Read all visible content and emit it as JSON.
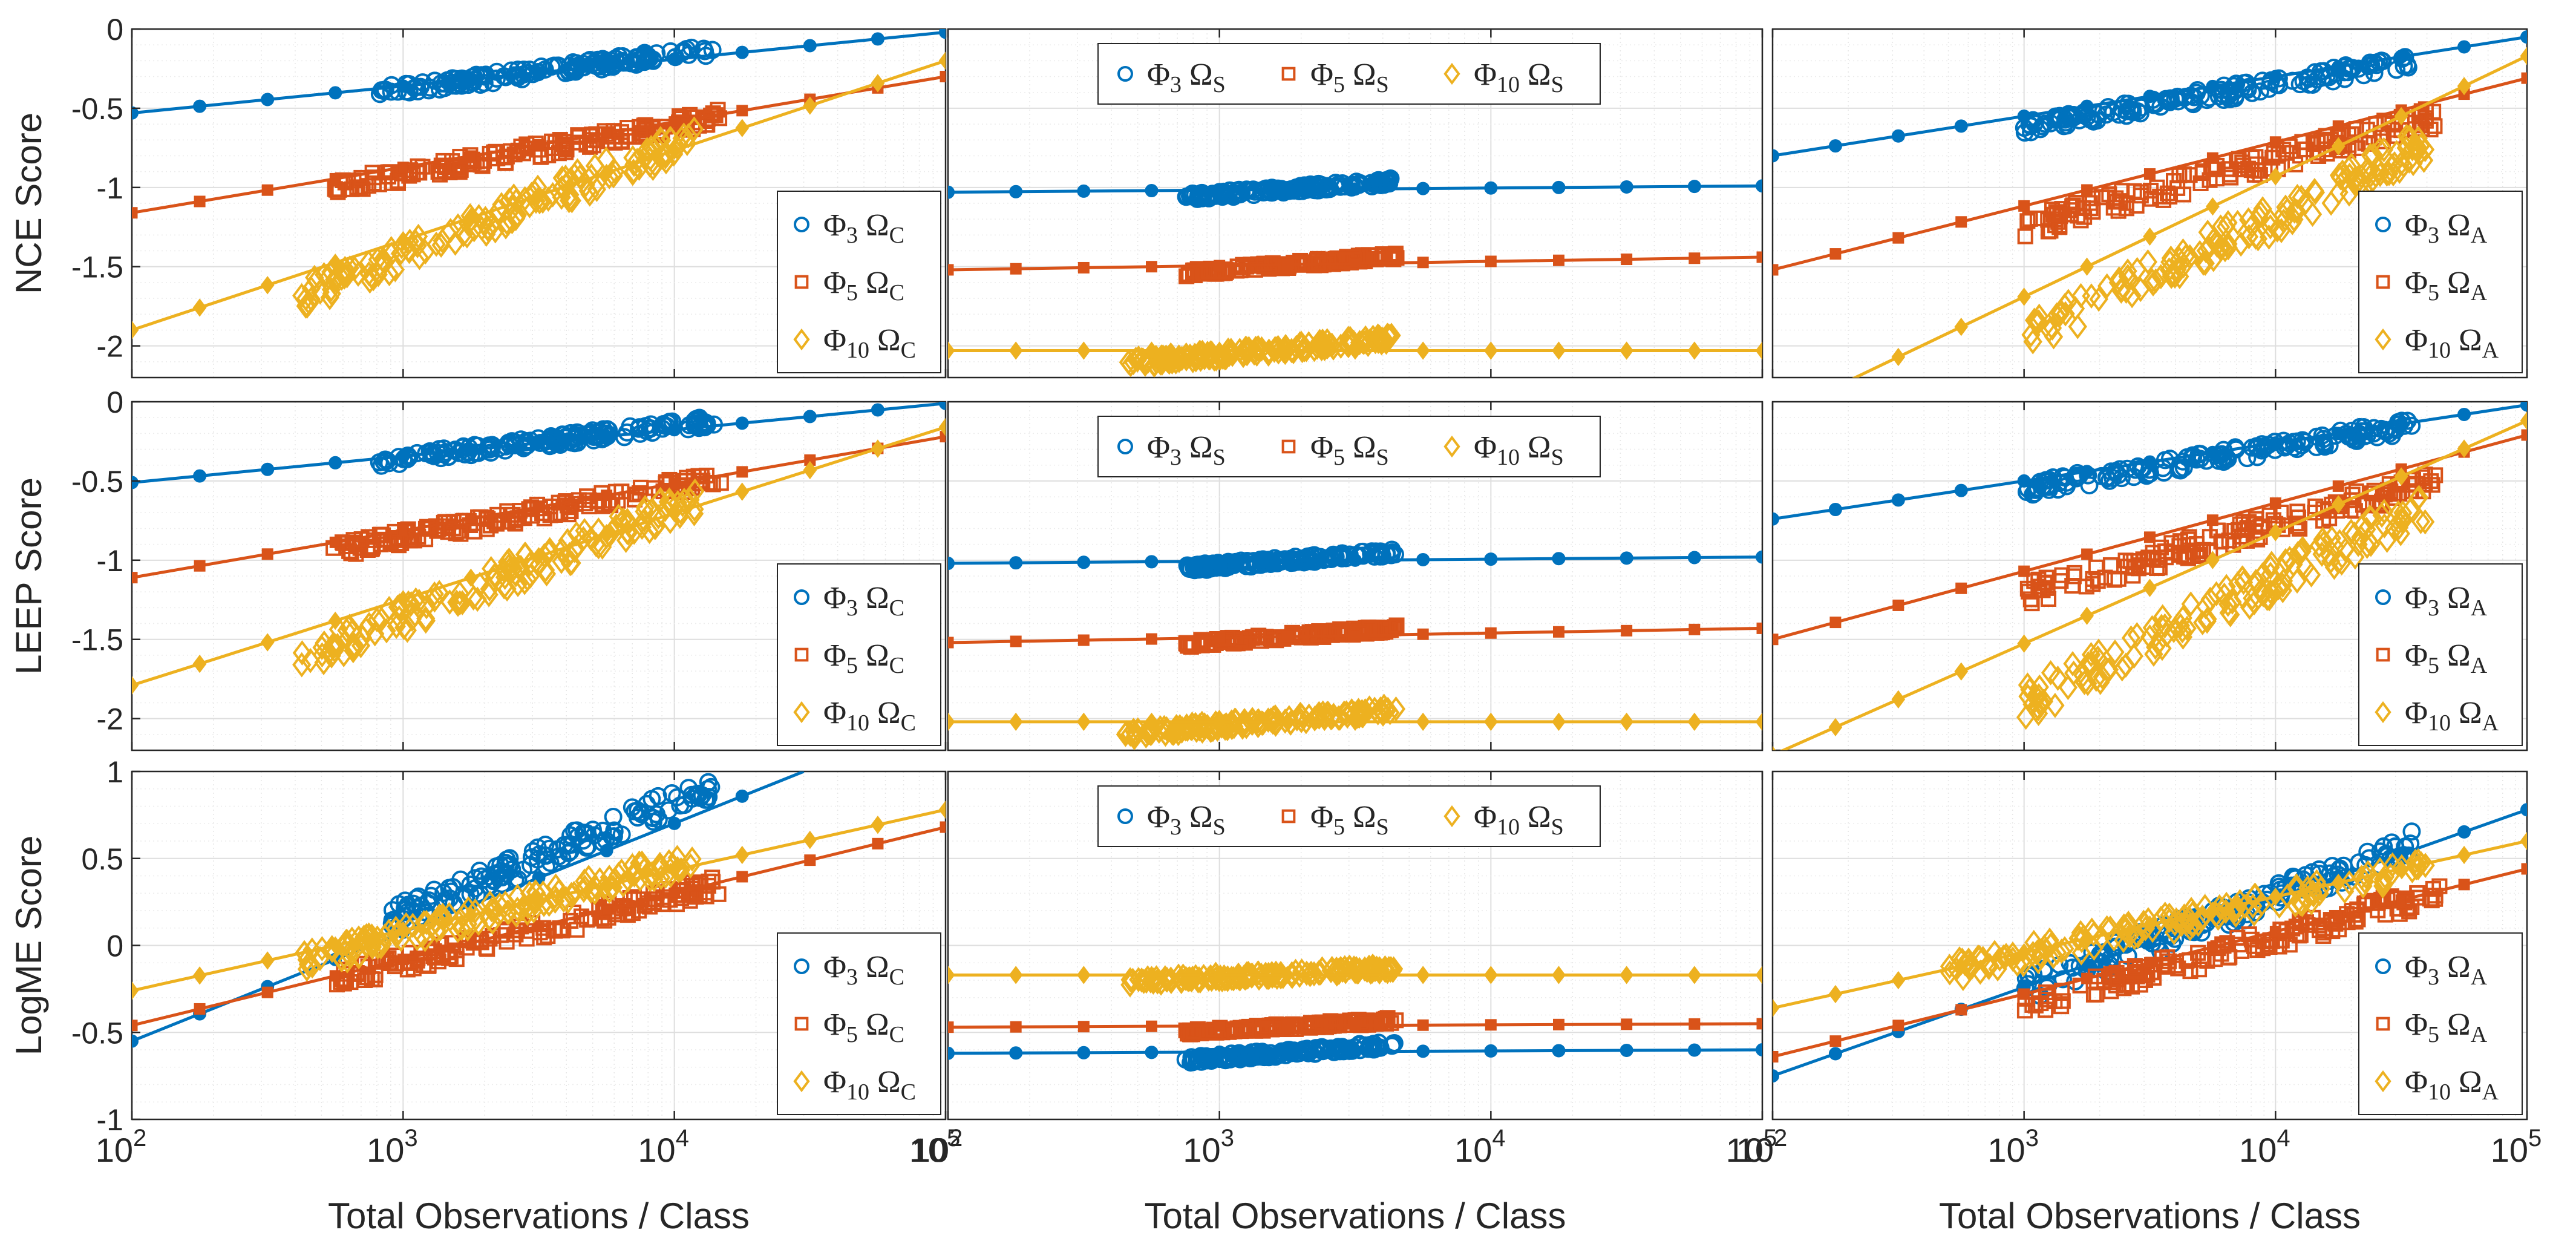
{
  "figure": {
    "xlabel": "Total Observations / Class",
    "xscale": "log",
    "xlim": [
      100,
      100000
    ],
    "x_tick_labels": [
      {
        "base": "10",
        "exp": "2"
      },
      {
        "base": "10",
        "exp": "3"
      },
      {
        "base": "10",
        "exp": "4"
      },
      {
        "base": "10",
        "exp": "5"
      }
    ],
    "grid": true,
    "minor_grid": true,
    "colors": {
      "phi3": "#0072BD",
      "phi5": "#D95319",
      "phi10": "#EDB120"
    }
  },
  "chart_data": [
    {
      "type": "scatter",
      "row": 0,
      "col": 0,
      "ylabel": "NCE Score",
      "ylim": [
        -2.2,
        0
      ],
      "yticks": [
        "0",
        "-0.5",
        "-1",
        "-1.5",
        "-2"
      ],
      "legend_position": "bottom-right",
      "legend_layout": "vertical",
      "series": [
        {
          "name": "Φ3 ΩC",
          "phi": "3",
          "omega": "C",
          "color": "#0072BD",
          "marker": "circle",
          "fit_line": [
            [
              100,
              -0.53
            ],
            [
              100000,
              -0.02
            ]
          ],
          "scatter_x_range": [
            800,
            14000
          ],
          "scatter_y_range": [
            -0.4,
            -0.13
          ]
        },
        {
          "name": "Φ5 ΩC",
          "phi": "5",
          "omega": "C",
          "color": "#D95319",
          "marker": "square",
          "fit_line": [
            [
              100,
              -1.16
            ],
            [
              100000,
              -0.3
            ]
          ],
          "scatter_x_range": [
            550,
            15000
          ],
          "scatter_y_range": [
            -1.0,
            -0.55
          ]
        },
        {
          "name": "Φ10 ΩC",
          "phi": "10",
          "omega": "C",
          "color": "#EDB120",
          "marker": "diamond",
          "fit_line": [
            [
              100,
              -1.9
            ],
            [
              100000,
              -0.2
            ]
          ],
          "scatter_x_range": [
            420,
            12000
          ],
          "scatter_y_range": [
            -1.68,
            -0.68
          ]
        }
      ]
    },
    {
      "type": "scatter",
      "row": 0,
      "col": 1,
      "ylabel": "",
      "ylim": [
        -2.2,
        0
      ],
      "yticks": [],
      "legend_position": "top-center",
      "legend_layout": "horizontal",
      "series": [
        {
          "name": "Φ3 ΩS",
          "phi": "3",
          "omega": "S",
          "color": "#0072BD",
          "marker": "circle",
          "fit_line": [
            [
              100,
              -1.03
            ],
            [
              100000,
              -0.99
            ]
          ],
          "scatter_x_range": [
            750,
            4500
          ],
          "scatter_y_range": [
            -1.06,
            -0.96
          ]
        },
        {
          "name": "Φ5 ΩS",
          "phi": "5",
          "omega": "S",
          "color": "#D95319",
          "marker": "square",
          "fit_line": [
            [
              100,
              -1.52
            ],
            [
              100000,
              -1.44
            ]
          ],
          "scatter_x_range": [
            750,
            4500
          ],
          "scatter_y_range": [
            -1.54,
            -1.43
          ]
        },
        {
          "name": "Φ10 ΩS",
          "phi": "10",
          "omega": "S",
          "color": "#EDB120",
          "marker": "diamond",
          "fit_line": [
            [
              100,
              -2.03
            ],
            [
              100000,
              -2.03
            ]
          ],
          "scatter_x_range": [
            450,
            4500
          ],
          "scatter_y_range": [
            -2.11,
            -1.95
          ]
        }
      ]
    },
    {
      "type": "scatter",
      "row": 0,
      "col": 2,
      "ylabel": "",
      "ylim": [
        -2.2,
        0
      ],
      "yticks": [],
      "legend_position": "bottom-right",
      "legend_layout": "vertical",
      "series": [
        {
          "name": "Φ3 ΩA",
          "phi": "3",
          "omega": "A",
          "color": "#0072BD",
          "marker": "circle",
          "fit_line": [
            [
              100,
              -0.8
            ],
            [
              100000,
              -0.05
            ]
          ],
          "scatter_x_range": [
            1000,
            35000
          ],
          "scatter_y_range": [
            -0.62,
            -0.2
          ]
        },
        {
          "name": "Φ5 ΩA",
          "phi": "5",
          "omega": "A",
          "color": "#D95319",
          "marker": "square",
          "fit_line": [
            [
              100,
              -1.52
            ],
            [
              100000,
              -0.31
            ]
          ],
          "scatter_x_range": [
            1000,
            45000
          ],
          "scatter_y_range": [
            -1.25,
            -0.55
          ]
        },
        {
          "name": "Φ10 ΩA",
          "phi": "10",
          "omega": "A",
          "color": "#EDB120",
          "marker": "diamond",
          "fit_line": [
            [
              100,
              -2.45
            ],
            [
              100000,
              -0.17
            ]
          ],
          "scatter_x_range": [
            1000,
            40000
          ],
          "scatter_y_range": [
            -1.95,
            -0.72
          ]
        }
      ]
    },
    {
      "type": "scatter",
      "row": 1,
      "col": 0,
      "ylabel": "LEEP Score",
      "ylim": [
        -2.2,
        0
      ],
      "yticks": [
        "0",
        "-0.5",
        "-1",
        "-1.5",
        "-2"
      ],
      "legend_position": "bottom-right",
      "legend_layout": "vertical",
      "series": [
        {
          "name": "Φ3 ΩC",
          "phi": "3",
          "omega": "C",
          "color": "#0072BD",
          "marker": "circle",
          "fit_line": [
            [
              100,
              -0.51
            ],
            [
              100000,
              -0.01
            ]
          ],
          "scatter_x_range": [
            800,
            14000
          ],
          "scatter_y_range": [
            -0.38,
            -0.12
          ]
        },
        {
          "name": "Φ5 ΩC",
          "phi": "5",
          "omega": "C",
          "color": "#D95319",
          "marker": "square",
          "fit_line": [
            [
              100,
              -1.11
            ],
            [
              100000,
              -0.22
            ]
          ],
          "scatter_x_range": [
            550,
            15000
          ],
          "scatter_y_range": [
            -0.94,
            -0.48
          ]
        },
        {
          "name": "Φ10 ΩC",
          "phi": "10",
          "omega": "C",
          "color": "#EDB120",
          "marker": "diamond",
          "fit_line": [
            [
              100,
              -1.79
            ],
            [
              100000,
              -0.16
            ]
          ],
          "scatter_x_range": [
            420,
            12000
          ],
          "scatter_y_range": [
            -1.62,
            -0.62
          ]
        }
      ]
    },
    {
      "type": "scatter",
      "row": 1,
      "col": 1,
      "ylabel": "",
      "ylim": [
        -2.2,
        0
      ],
      "yticks": [],
      "legend_position": "top-center",
      "legend_layout": "horizontal",
      "series": [
        {
          "name": "Φ3 ΩS",
          "phi": "3",
          "omega": "S",
          "color": "#0072BD",
          "marker": "circle",
          "fit_line": [
            [
              100,
              -1.02
            ],
            [
              100000,
              -0.98
            ]
          ],
          "scatter_x_range": [
            750,
            4500
          ],
          "scatter_y_range": [
            -1.05,
            -0.95
          ]
        },
        {
          "name": "Φ5 ΩS",
          "phi": "5",
          "omega": "S",
          "color": "#D95319",
          "marker": "square",
          "fit_line": [
            [
              100,
              -1.52
            ],
            [
              100000,
              -1.43
            ]
          ],
          "scatter_x_range": [
            750,
            4500
          ],
          "scatter_y_range": [
            -1.53,
            -1.43
          ]
        },
        {
          "name": "Φ10 ΩS",
          "phi": "10",
          "omega": "S",
          "color": "#EDB120",
          "marker": "diamond",
          "fit_line": [
            [
              100,
              -2.02
            ],
            [
              100000,
              -2.02
            ]
          ],
          "scatter_x_range": [
            450,
            4500
          ],
          "scatter_y_range": [
            -2.1,
            -1.94
          ]
        }
      ]
    },
    {
      "type": "scatter",
      "row": 1,
      "col": 2,
      "ylabel": "",
      "ylim": [
        -2.2,
        0
      ],
      "yticks": [],
      "legend_position": "bottom-right",
      "legend_layout": "vertical",
      "series": [
        {
          "name": "Φ3 ΩA",
          "phi": "3",
          "omega": "A",
          "color": "#0072BD",
          "marker": "circle",
          "fit_line": [
            [
              100,
              -0.74
            ],
            [
              100000,
              -0.02
            ]
          ],
          "scatter_x_range": [
            1000,
            35000
          ],
          "scatter_y_range": [
            -0.55,
            -0.15
          ]
        },
        {
          "name": "Φ5 ΩA",
          "phi": "5",
          "omega": "A",
          "color": "#D95319",
          "marker": "square",
          "fit_line": [
            [
              100,
              -1.5
            ],
            [
              100000,
              -0.21
            ]
          ],
          "scatter_x_range": [
            1000,
            45000
          ],
          "scatter_y_range": [
            -1.22,
            -0.48
          ]
        },
        {
          "name": "Φ10 ΩA",
          "phi": "10",
          "omega": "A",
          "color": "#EDB120",
          "marker": "diamond",
          "fit_line": [
            [
              100,
              -2.23
            ],
            [
              100000,
              -0.12
            ]
          ],
          "scatter_x_range": [
            1000,
            40000
          ],
          "scatter_y_range": [
            -1.9,
            -0.65
          ]
        }
      ]
    },
    {
      "type": "scatter",
      "row": 2,
      "col": 0,
      "ylabel": "LogME Score",
      "ylim": [
        -1,
        1
      ],
      "yticks": [
        "1",
        "0.5",
        "0",
        "-0.5",
        "-1"
      ],
      "legend_position": "bottom-right",
      "legend_layout": "vertical",
      "series": [
        {
          "name": "Φ3 ΩC",
          "phi": "3",
          "omega": "C",
          "color": "#0072BD",
          "marker": "circle",
          "fit_line": [
            [
              100,
              -0.55
            ],
            [
              30000,
              1.0
            ]
          ],
          "scatter_x_range": [
            900,
            14000
          ],
          "scatter_y_range": [
            0.15,
            0.92
          ]
        },
        {
          "name": "Φ5 ΩC",
          "phi": "5",
          "omega": "C",
          "color": "#D95319",
          "marker": "square",
          "fit_line": [
            [
              100,
              -0.46
            ],
            [
              100000,
              0.68
            ]
          ],
          "scatter_x_range": [
            550,
            15000
          ],
          "scatter_y_range": [
            -0.2,
            0.35
          ]
        },
        {
          "name": "Φ10 ΩC",
          "phi": "10",
          "omega": "C",
          "color": "#EDB120",
          "marker": "diamond",
          "fit_line": [
            [
              100,
              -0.26
            ],
            [
              100000,
              0.78
            ]
          ],
          "scatter_x_range": [
            420,
            12000
          ],
          "scatter_y_range": [
            -0.1,
            0.5
          ]
        }
      ]
    },
    {
      "type": "scatter",
      "row": 2,
      "col": 1,
      "ylabel": "",
      "ylim": [
        -1,
        1
      ],
      "yticks": [],
      "legend_position": "top-center",
      "legend_layout": "horizontal",
      "series": [
        {
          "name": "Φ3 ΩS",
          "phi": "3",
          "omega": "S",
          "color": "#0072BD",
          "marker": "circle",
          "fit_line": [
            [
              100,
              -0.62
            ],
            [
              100000,
              -0.6
            ]
          ],
          "scatter_x_range": [
            750,
            4500
          ],
          "scatter_y_range": [
            -0.66,
            -0.57
          ]
        },
        {
          "name": "Φ5 ΩS",
          "phi": "5",
          "omega": "S",
          "color": "#D95319",
          "marker": "square",
          "fit_line": [
            [
              100,
              -0.47
            ],
            [
              100000,
              -0.45
            ]
          ],
          "scatter_x_range": [
            750,
            4500
          ],
          "scatter_y_range": [
            -0.5,
            -0.43
          ]
        },
        {
          "name": "Φ10 ΩS",
          "phi": "10",
          "omega": "S",
          "color": "#EDB120",
          "marker": "diamond",
          "fit_line": [
            [
              100,
              -0.17
            ],
            [
              100000,
              -0.17
            ]
          ],
          "scatter_x_range": [
            450,
            4500
          ],
          "scatter_y_range": [
            -0.21,
            -0.13
          ]
        }
      ]
    },
    {
      "type": "scatter",
      "row": 2,
      "col": 2,
      "ylabel": "",
      "ylim": [
        -1,
        1
      ],
      "yticks": [],
      "legend_position": "bottom-right",
      "legend_layout": "vertical",
      "series": [
        {
          "name": "Φ3 ΩA",
          "phi": "3",
          "omega": "A",
          "color": "#0072BD",
          "marker": "circle",
          "fit_line": [
            [
              100,
              -0.75
            ],
            [
              100000,
              0.78
            ]
          ],
          "scatter_x_range": [
            1000,
            35000
          ],
          "scatter_y_range": [
            -0.25,
            0.58
          ]
        },
        {
          "name": "Φ5 ΩA",
          "phi": "5",
          "omega": "A",
          "color": "#D95319",
          "marker": "square",
          "fit_line": [
            [
              100,
              -0.64
            ],
            [
              100000,
              0.44
            ]
          ],
          "scatter_x_range": [
            1000,
            45000
          ],
          "scatter_y_range": [
            -0.35,
            0.3
          ]
        },
        {
          "name": "Φ10 ΩA",
          "phi": "10",
          "omega": "A",
          "color": "#EDB120",
          "marker": "diamond",
          "fit_line": [
            [
              100,
              -0.36
            ],
            [
              100000,
              0.6
            ]
          ],
          "scatter_x_range": [
            500,
            40000
          ],
          "scatter_y_range": [
            -0.15,
            0.45
          ]
        }
      ]
    }
  ]
}
